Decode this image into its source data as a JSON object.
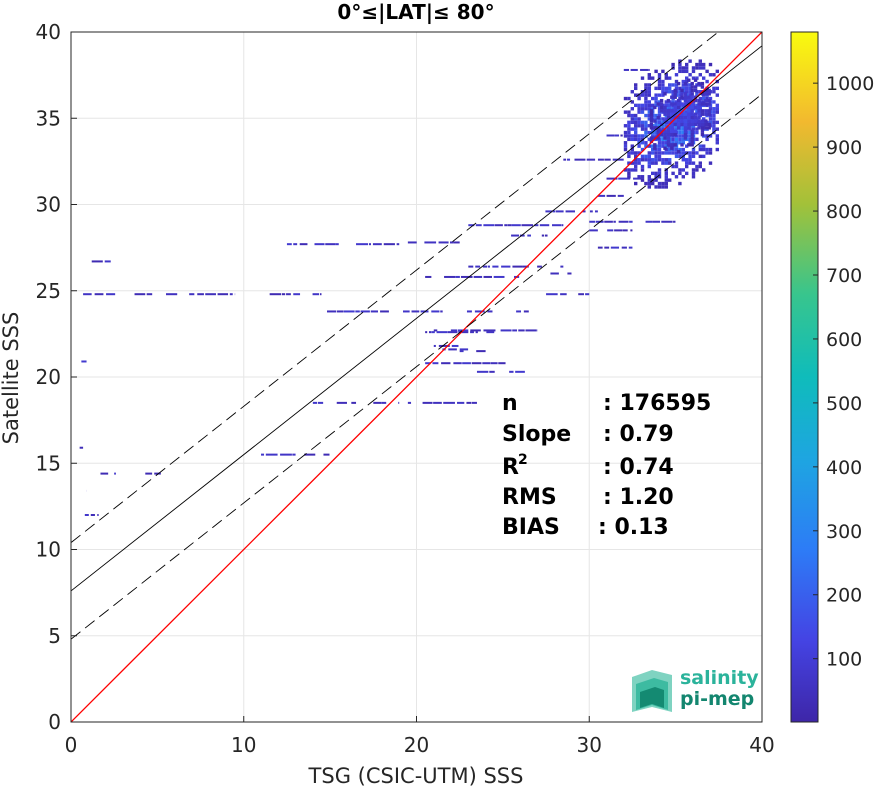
{
  "chart_data": {
    "type": "heatmap",
    "title": "0°≤|LAT|≤ 80°",
    "xlabel": "TSG (CSIC-UTM) SSS",
    "ylabel": "Satellite SSS",
    "xlim": [
      0,
      40
    ],
    "ylim": [
      0,
      40
    ],
    "x_ticks": [
      "0",
      "10",
      "20",
      "30",
      "40"
    ],
    "y_ticks": [
      "0",
      "5",
      "10",
      "15",
      "20",
      "25",
      "30",
      "35",
      "40"
    ],
    "grid": true,
    "colorbar": {
      "range": [
        1,
        1080
      ],
      "ticks": [
        "100",
        "200",
        "300",
        "400",
        "500",
        "600",
        "700",
        "800",
        "900",
        "1000"
      ],
      "colormap": "parula"
    },
    "lines": [
      {
        "role": "identity",
        "color": "#ff0000",
        "intercept": 0,
        "slope": 1,
        "style": "solid"
      },
      {
        "role": "regression",
        "color": "#000000",
        "intercept": 7.6,
        "slope": 0.79,
        "style": "solid"
      },
      {
        "role": "upper-bound",
        "color": "#000000",
        "intercept": 10.4,
        "slope": 0.79,
        "style": "dashed"
      },
      {
        "role": "lower-bound",
        "color": "#000000",
        "intercept": 4.8,
        "slope": 0.79,
        "style": "dashed"
      }
    ],
    "density_clusters": [
      {
        "x": [
          32,
          37.5
        ],
        "y": [
          30.5,
          39
        ],
        "peak": 220
      },
      {
        "x": [
          33.5,
          37
        ],
        "y": [
          33,
          37.5
        ],
        "peak": 120
      }
    ],
    "density_segments": [
      {
        "x": [
          0.7,
          4.7
        ],
        "y": 24.8
      },
      {
        "x": [
          5.5,
          9.5
        ],
        "y": 24.8
      },
      {
        "x": [
          11.5,
          14.5
        ],
        "y": 24.8
      },
      {
        "x": [
          1.2,
          2.3
        ],
        "y": 26.7
      },
      {
        "x": [
          12.5,
          15.5
        ],
        "y": 27.7
      },
      {
        "x": [
          16.5,
          19
        ],
        "y": 27.7
      },
      {
        "x": [
          19.5,
          22.5
        ],
        "y": 27.8
      },
      {
        "x": [
          14.5,
          18.5
        ],
        "y": 23.8
      },
      {
        "x": [
          19,
          26.5
        ],
        "y": 23.8
      },
      {
        "x": [
          14,
          16.5
        ],
        "y": 18.5
      },
      {
        "x": [
          17.5,
          19
        ],
        "y": 18.5
      },
      {
        "x": [
          19.5,
          23.5
        ],
        "y": 18.5
      },
      {
        "x": [
          11,
          13
        ],
        "y": 15.5
      },
      {
        "x": [
          13.5,
          15
        ],
        "y": 15.5
      },
      {
        "x": [
          0.6,
          0.9
        ],
        "y": 20.9
      },
      {
        "x": [
          0.5,
          0.7
        ],
        "y": 15.9
      },
      {
        "x": [
          0.6,
          0.9
        ],
        "y": 13.4
      },
      {
        "x": [
          1.4,
          2.6
        ],
        "y": 14.4
      },
      {
        "x": [
          4.3,
          5.2
        ],
        "y": 14.4
      },
      {
        "x": [
          0.8,
          1.6
        ],
        "y": 12.0
      },
      {
        "x": [
          20.5,
          26
        ],
        "y": 25.8
      },
      {
        "x": [
          23,
          28.5
        ],
        "y": 28.8
      },
      {
        "x": [
          27.5,
          30
        ],
        "y": 24.8
      },
      {
        "x": [
          20.5,
          24.5
        ],
        "y": 22.6
      },
      {
        "x": [
          21,
          27
        ],
        "y": 22.7
      },
      {
        "x": [
          21,
          23
        ],
        "y": 21.8
      },
      {
        "x": [
          21.5,
          23
        ],
        "y": 21.6
      },
      {
        "x": [
          20.5,
          25.5
        ],
        "y": 20.8
      },
      {
        "x": [
          23.5,
          27
        ],
        "y": 20.3
      },
      {
        "x": [
          23,
          28.5
        ],
        "y": 26.4
      },
      {
        "x": [
          25,
          28
        ],
        "y": 28.2
      },
      {
        "x": [
          25.5,
          30.5
        ],
        "y": 29.6
      },
      {
        "x": [
          28.5,
          32
        ],
        "y": 32.6
      },
      {
        "x": [
          30,
          35
        ],
        "y": 29.0
      },
      {
        "x": [
          30,
          32.5
        ],
        "y": 28.5
      },
      {
        "x": [
          31,
          33.5
        ],
        "y": 31.5
      },
      {
        "x": [
          30.5,
          32.5
        ],
        "y": 27.5
      },
      {
        "x": [
          22.5,
          24
        ],
        "y": 21.5
      },
      {
        "x": [
          27,
          29
        ],
        "y": 26.0
      },
      {
        "x": [
          30.5,
          32
        ],
        "y": 30.5
      },
      {
        "x": [
          31,
          32.5
        ],
        "y": 34.0
      },
      {
        "x": [
          32,
          33.5
        ],
        "y": 37.8
      }
    ],
    "stats": [
      {
        "label": "n",
        "value": ": 176595"
      },
      {
        "label": "Slope",
        "value": ": 0.79"
      },
      {
        "label": "R",
        "sup": "2",
        "value": ": 0.74"
      },
      {
        "label": "RMS",
        "value": ": 1.20"
      },
      {
        "label": "BIAS",
        "value": ": 0.13"
      }
    ]
  },
  "logo": {
    "line1": "salinity",
    "line2": "pi-mep",
    "colors": {
      "salinity": "#2bb39b",
      "pimep": "#13866f"
    }
  },
  "colors": {
    "grid": "#e6e6e6",
    "axis": "#262626",
    "identity": "#ff0000"
  }
}
